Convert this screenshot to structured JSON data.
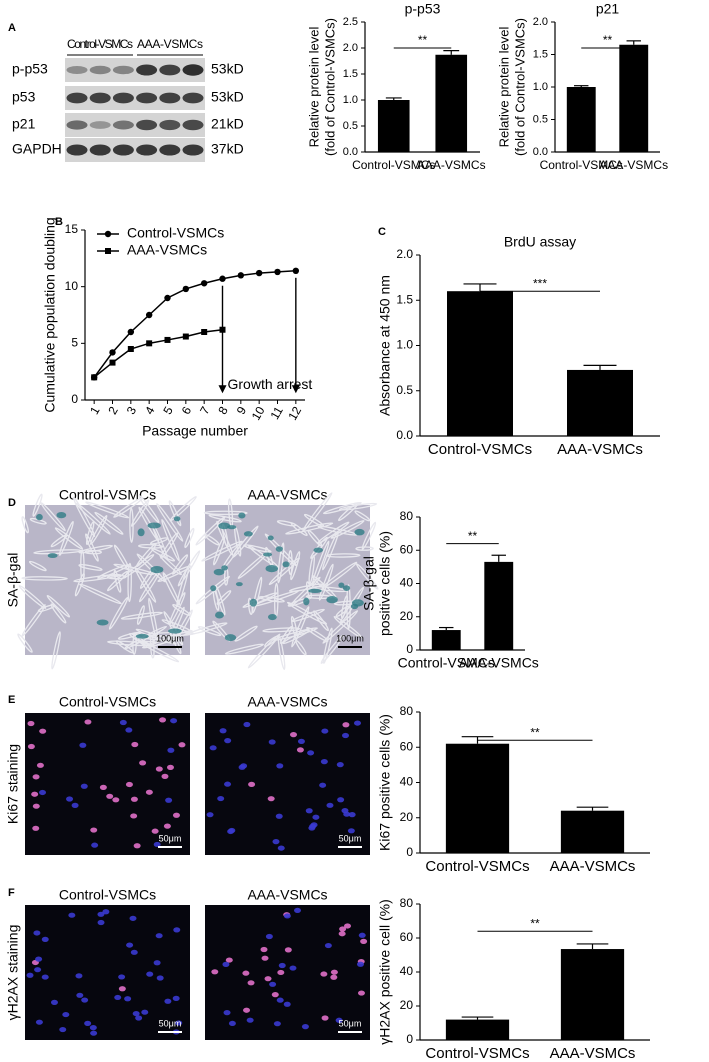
{
  "panel_labels": [
    "A",
    "B",
    "C",
    "D",
    "E",
    "F"
  ],
  "blot": {
    "columns": [
      "Control-VSMCs",
      "AAA-VSMCs"
    ],
    "rows": [
      {
        "name": "p-p53",
        "size": "53kD"
      },
      {
        "name": "p53",
        "size": "53kD"
      },
      {
        "name": "p21",
        "size": "21kD"
      },
      {
        "name": "GAPDH",
        "size": "37kD"
      }
    ]
  },
  "image_panels": [
    {
      "row_label": "SA-β-gal",
      "columns": [
        "Control-VSMCs",
        "AAA-VSMCs"
      ],
      "scale_bars": [
        "100μm",
        "100μm"
      ]
    },
    {
      "row_label": "Ki67 staining",
      "columns": [
        "Control-VSMCs",
        "AAA-VSMCs"
      ],
      "scale_bars": [
        "50μm",
        "50μm"
      ]
    },
    {
      "row_label": "γH2AX staining",
      "columns": [
        "Control-VSMCs",
        "AAA-VSMCs"
      ],
      "scale_bars": [
        "50μm",
        "50μm"
      ]
    }
  ],
  "chart_data": [
    {
      "type": "bar",
      "title": "p-p53",
      "ylabel": [
        "Relative protein level",
        "(fold of Control-VSMCs)"
      ],
      "categories": [
        "Control-VSMCs",
        "AAA-VSMCs"
      ],
      "values": [
        1.0,
        1.87
      ],
      "errors": [
        0.04,
        0.08
      ],
      "color": "#000000",
      "ylim": [
        0,
        2.5
      ],
      "yticks": [
        {
          "value": 0,
          "label": "0.0"
        },
        0.5,
        {
          "value": 1,
          "label": "1.0"
        },
        1.5,
        {
          "value": 2,
          "label": "2.0"
        },
        2.5
      ],
      "annotation": "**"
    },
    {
      "type": "bar",
      "title": "p21",
      "ylabel": [
        "Relative protein level",
        "(fold of Control-VSMCs)"
      ],
      "categories": [
        "Control-VSMCs",
        "AAA-VSMCs"
      ],
      "values": [
        1.0,
        1.65
      ],
      "errors": [
        0.02,
        0.06
      ],
      "color": "#000000",
      "ylim": [
        0,
        2
      ],
      "yticks": [
        {
          "value": 0,
          "label": "0.0"
        },
        0.5,
        {
          "value": 1,
          "label": "1.0"
        },
        1.5,
        {
          "value": 2,
          "label": "2.0"
        }
      ],
      "annotation": "**"
    },
    {
      "type": "line",
      "xlabel": "Passage number",
      "ylabel": [
        "Cumulative population doubling"
      ],
      "x": [
        1,
        2,
        3,
        4,
        5,
        6,
        7,
        8,
        9,
        10,
        11,
        12
      ],
      "xlim": [
        0.5,
        12.5
      ],
      "xticks": [
        1,
        2,
        3,
        4,
        5,
        6,
        7,
        8,
        9,
        10,
        11,
        12
      ],
      "series": [
        {
          "name": "Control-VSMCs",
          "color": "#000000",
          "marker": "circle",
          "values": [
            2,
            4.2,
            6,
            7.5,
            9,
            9.8,
            10.3,
            10.7,
            11,
            11.2,
            11.3,
            11.4
          ]
        },
        {
          "name": "AAA-VSMCs",
          "color": "#000000",
          "marker": "square",
          "values": [
            2,
            3.3,
            4.5,
            5.0,
            5.3,
            5.6,
            6.0,
            6.2,
            null,
            null,
            null,
            null
          ]
        }
      ],
      "ylim": [
        0,
        15
      ],
      "yticks": [
        0,
        5,
        10,
        15
      ],
      "legend": "upper left",
      "annotation": "Growth arrest",
      "arrows_at": [
        8,
        12
      ]
    },
    {
      "type": "bar",
      "title": "BrdU assay",
      "ylabel": [
        "Absorbance at 450 nm"
      ],
      "categories": [
        "Control-VSMCs",
        "AAA-VSMCs"
      ],
      "values": [
        1.6,
        0.73
      ],
      "errors": [
        0.08,
        0.05
      ],
      "color": "#000000",
      "ylim": [
        0,
        2
      ],
      "yticks": [
        {
          "value": 0,
          "label": "0.0"
        },
        0.5,
        {
          "value": 1,
          "label": "1.0"
        },
        1.5,
        {
          "value": 2,
          "label": "2.0"
        }
      ],
      "annotation": "***"
    },
    {
      "type": "bar",
      "ylabel": [
        "SA-β-gal",
        "positive cells (%)"
      ],
      "categories": [
        "Control-VSMCs",
        "AAA-VSMCs"
      ],
      "values": [
        12,
        53
      ],
      "errors": [
        1.5,
        4
      ],
      "color": "#000000",
      "ylim": [
        0,
        80
      ],
      "yticks": [
        0,
        20,
        40,
        60,
        80
      ],
      "annotation": "**"
    },
    {
      "type": "bar",
      "ylabel": [
        "Ki67 positive cells (%)"
      ],
      "categories": [
        "Control-VSMCs",
        "AAA-VSMCs"
      ],
      "values": [
        62,
        24
      ],
      "errors": [
        4,
        2
      ],
      "color": "#000000",
      "ylim": [
        0,
        80
      ],
      "yticks": [
        0,
        20,
        40,
        60,
        80
      ],
      "annotation": "**"
    },
    {
      "type": "bar",
      "ylabel": [
        "γH2AX positive cell (%)"
      ],
      "categories": [
        "Control-VSMCs",
        "AAA-VSMCs"
      ],
      "values": [
        12,
        53.5
      ],
      "errors": [
        1.5,
        3
      ],
      "color": "#000000",
      "ylim": [
        0,
        80
      ],
      "yticks": [
        0,
        20,
        40,
        60,
        80
      ],
      "annotation": "**"
    }
  ]
}
